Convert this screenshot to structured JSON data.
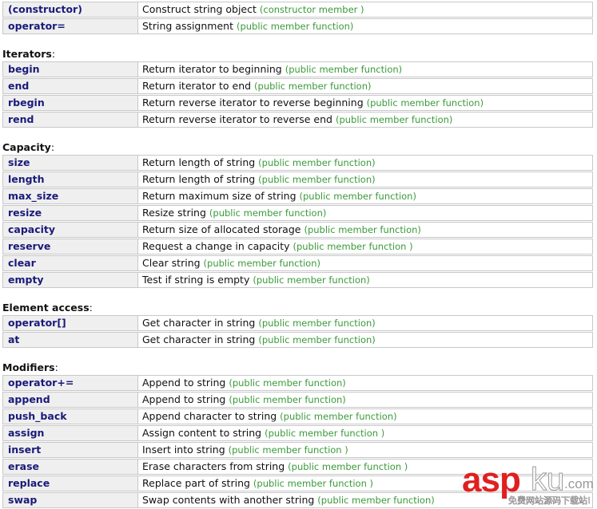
{
  "sections": [
    {
      "label": "",
      "rows": [
        {
          "name": "(constructor)",
          "desc": "Construct string object",
          "kind": "(constructor member )"
        },
        {
          "name": "operator=",
          "desc": "String assignment",
          "kind": "(public member function)"
        }
      ]
    },
    {
      "label": "Iterators",
      "rows": [
        {
          "name": "begin",
          "desc": "Return iterator to beginning",
          "kind": "(public member function)"
        },
        {
          "name": "end",
          "desc": "Return iterator to end",
          "kind": "(public member function)"
        },
        {
          "name": "rbegin",
          "desc": "Return reverse iterator to reverse beginning",
          "kind": "(public member function)"
        },
        {
          "name": "rend",
          "desc": "Return reverse iterator to reverse end",
          "kind": "(public member function)"
        }
      ]
    },
    {
      "label": "Capacity",
      "rows": [
        {
          "name": "size",
          "desc": "Return length of string",
          "kind": "(public member function)"
        },
        {
          "name": "length",
          "desc": "Return length of string",
          "kind": "(public member function)"
        },
        {
          "name": "max_size",
          "desc": "Return maximum size of string",
          "kind": "(public member function)"
        },
        {
          "name": "resize",
          "desc": "Resize string",
          "kind": "(public member function)"
        },
        {
          "name": "capacity",
          "desc": "Return size of allocated storage",
          "kind": "(public member function)"
        },
        {
          "name": "reserve",
          "desc": "Request a change in capacity",
          "kind": "(public member function )"
        },
        {
          "name": "clear",
          "desc": "Clear string",
          "kind": "(public member function)"
        },
        {
          "name": "empty",
          "desc": "Test if string is empty",
          "kind": "(public member function)"
        }
      ]
    },
    {
      "label": "Element access",
      "rows": [
        {
          "name": "operator[]",
          "desc": "Get character in string",
          "kind": "(public member function)"
        },
        {
          "name": "at",
          "desc": "Get character in string",
          "kind": "(public member function)"
        }
      ]
    },
    {
      "label": "Modifiers",
      "rows": [
        {
          "name": "operator+=",
          "desc": "Append to string",
          "kind": "(public member function)"
        },
        {
          "name": "append",
          "desc": "Append to string",
          "kind": "(public member function)"
        },
        {
          "name": "push_back",
          "desc": "Append character to string",
          "kind": "(public member function)"
        },
        {
          "name": "assign",
          "desc": "Assign content to string",
          "kind": "(public member function )"
        },
        {
          "name": "insert",
          "desc": "Insert into string",
          "kind": "(public member function )"
        },
        {
          "name": "erase",
          "desc": "Erase characters from string",
          "kind": "(public member function )"
        },
        {
          "name": "replace",
          "desc": "Replace part of string",
          "kind": "(public member function )"
        },
        {
          "name": "swap",
          "desc": "Swap contents with another string",
          "kind": "(public member function)"
        }
      ]
    }
  ],
  "section_suffix": ":",
  "watermark": {
    "brand_red": "asp",
    "brand_outline": "ku",
    "domain": ".com",
    "slogan": "免费网站源码下载站!"
  },
  "colors": {
    "name_text": "#1a1a7a",
    "kind_text": "#3a9a3a",
    "name_bg": "#efefef",
    "border": "#c8c8c8",
    "watermark_red": "#e02020"
  }
}
